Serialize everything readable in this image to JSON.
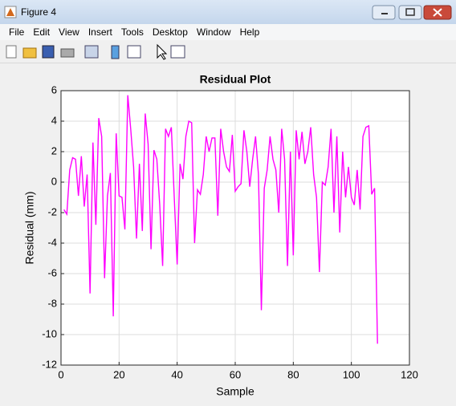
{
  "window": {
    "title": "Figure 4",
    "menu": [
      "File",
      "Edit",
      "View",
      "Insert",
      "Tools",
      "Desktop",
      "Window",
      "Help"
    ]
  },
  "chart_data": {
    "type": "line",
    "title": "Residual Plot",
    "x_label": "Sample",
    "y_label": "Residual (mm)",
    "x": [
      1,
      2,
      3,
      4,
      5,
      6,
      7,
      8,
      9,
      10,
      11,
      12,
      13,
      14,
      15,
      16,
      17,
      18,
      19,
      20,
      21,
      22,
      23,
      24,
      25,
      26,
      27,
      28,
      29,
      30,
      31,
      32,
      33,
      34,
      35,
      36,
      37,
      38,
      39,
      40,
      41,
      42,
      43,
      44,
      45,
      46,
      47,
      48,
      49,
      50,
      51,
      52,
      53,
      54,
      55,
      56,
      57,
      58,
      59,
      60,
      61,
      62,
      63,
      64,
      65,
      66,
      67,
      68,
      69,
      70,
      71,
      72,
      73,
      74,
      75,
      76,
      77,
      78,
      79,
      80,
      81,
      82,
      83,
      84,
      85,
      86,
      87,
      88,
      89,
      90,
      91,
      92,
      93,
      94,
      95,
      96,
      97,
      98,
      99,
      100,
      101,
      102,
      103,
      104,
      105,
      106,
      107,
      108,
      109
    ],
    "series": [
      {
        "color": "#ff00ff",
        "values": [
          -1.8,
          -2.1,
          0.8,
          1.6,
          1.5,
          -0.9,
          1.7,
          -1.6,
          0.5,
          -7.3,
          2.6,
          -2.8,
          4.2,
          3.0,
          -6.3,
          -0.9,
          0.6,
          -8.8,
          3.2,
          -0.9,
          -1.0,
          -3.1,
          5.7,
          3.5,
          1.0,
          -3.7,
          1.2,
          -3.2,
          4.5,
          2.5,
          -4.4,
          2.1,
          1.5,
          -1.5,
          -5.5,
          3.5,
          3.0,
          3.6,
          -1.0,
          -5.4,
          1.2,
          0.2,
          3.0,
          4.0,
          3.9,
          -4.0,
          -0.5,
          -0.8,
          0.5,
          3.0,
          2.0,
          2.9,
          2.9,
          -2.2,
          3.5,
          2.0,
          1.0,
          0.7,
          3.1,
          -0.6,
          -0.3,
          -0.1,
          3.4,
          2.0,
          -0.3,
          1.5,
          3.0,
          0.5,
          -8.4,
          -0.4,
          0.8,
          3.0,
          1.5,
          0.8,
          -2.0,
          3.5,
          1.5,
          -5.5,
          2.0,
          -4.8,
          3.4,
          1.5,
          3.3,
          1.2,
          2.0,
          3.6,
          0.5,
          -1.0,
          -5.9,
          0.0,
          -0.2,
          1.0,
          3.5,
          -2.0,
          3.0,
          -3.3,
          2.0,
          -1.0,
          1.0,
          -1.0,
          -1.5,
          0.8,
          -1.8,
          3.0,
          3.6,
          3.7,
          -0.8,
          -0.4,
          -10.6
        ]
      }
    ],
    "xlim": [
      0,
      120
    ],
    "xticks": [
      0,
      20,
      40,
      60,
      80,
      100,
      120
    ],
    "ylim": [
      -12,
      6
    ],
    "yticks": [
      -12,
      -10,
      -8,
      -6,
      -4,
      -2,
      0,
      2,
      4,
      6
    ],
    "grid": true
  }
}
